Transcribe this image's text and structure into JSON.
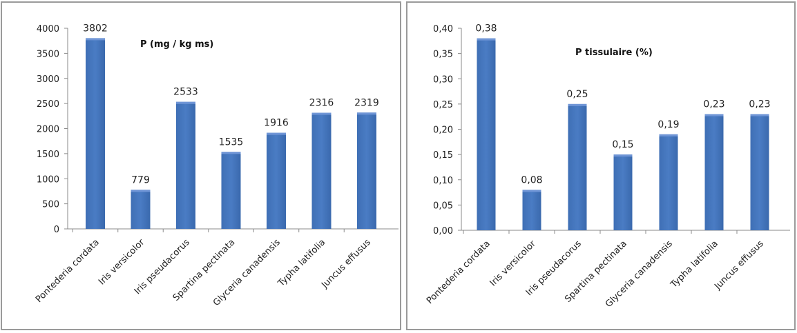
{
  "chart_data": [
    {
      "type": "bar",
      "title": "P (mg / kg ms)",
      "xlabel": "",
      "ylabel": "",
      "categories": [
        "Pontederia cordata",
        "Iris versicolor",
        "Iris pseudacorus",
        "Spartina pectinata",
        "Glyceria canadensis",
        "Typha latifolia",
        "Juncus effusus"
      ],
      "values": [
        3802,
        779,
        2533,
        1535,
        1916,
        2316,
        2319
      ],
      "data_labels": [
        "3802",
        "779",
        "2533",
        "1535",
        "1916",
        "2316",
        "2319"
      ],
      "ylim": [
        0,
        4000
      ],
      "yticks": [
        0,
        500,
        1000,
        1500,
        2000,
        2500,
        3000,
        3500,
        4000
      ],
      "ytick_labels": [
        "0",
        "500",
        "1000",
        "1500",
        "2000",
        "2500",
        "3000",
        "3500",
        "4000"
      ],
      "grid": false,
      "legend": "none",
      "bar_color": "#4a7cc4"
    },
    {
      "type": "bar",
      "title": "P tissulaire (%)",
      "xlabel": "",
      "ylabel": "",
      "categories": [
        "Pontederia cordata",
        "Iris versicolor",
        "Iris pseudacorus",
        "Spartina pectinata",
        "Glyceria canadensis",
        "Typha latifolia",
        "Juncus effusus"
      ],
      "values": [
        0.38,
        0.08,
        0.25,
        0.15,
        0.19,
        0.23,
        0.23
      ],
      "data_labels": [
        "0,38",
        "0,08",
        "0,25",
        "0,15",
        "0,19",
        "0,23",
        "0,23"
      ],
      "ylim": [
        0,
        0.4
      ],
      "yticks": [
        0,
        0.05,
        0.1,
        0.15,
        0.2,
        0.25,
        0.3,
        0.35,
        0.4
      ],
      "ytick_labels": [
        "0,00",
        "0,05",
        "0,10",
        "0,15",
        "0,20",
        "0,25",
        "0,30",
        "0,35",
        "0,40"
      ],
      "grid": false,
      "legend": "none",
      "bar_color": "#4a7cc4"
    }
  ]
}
